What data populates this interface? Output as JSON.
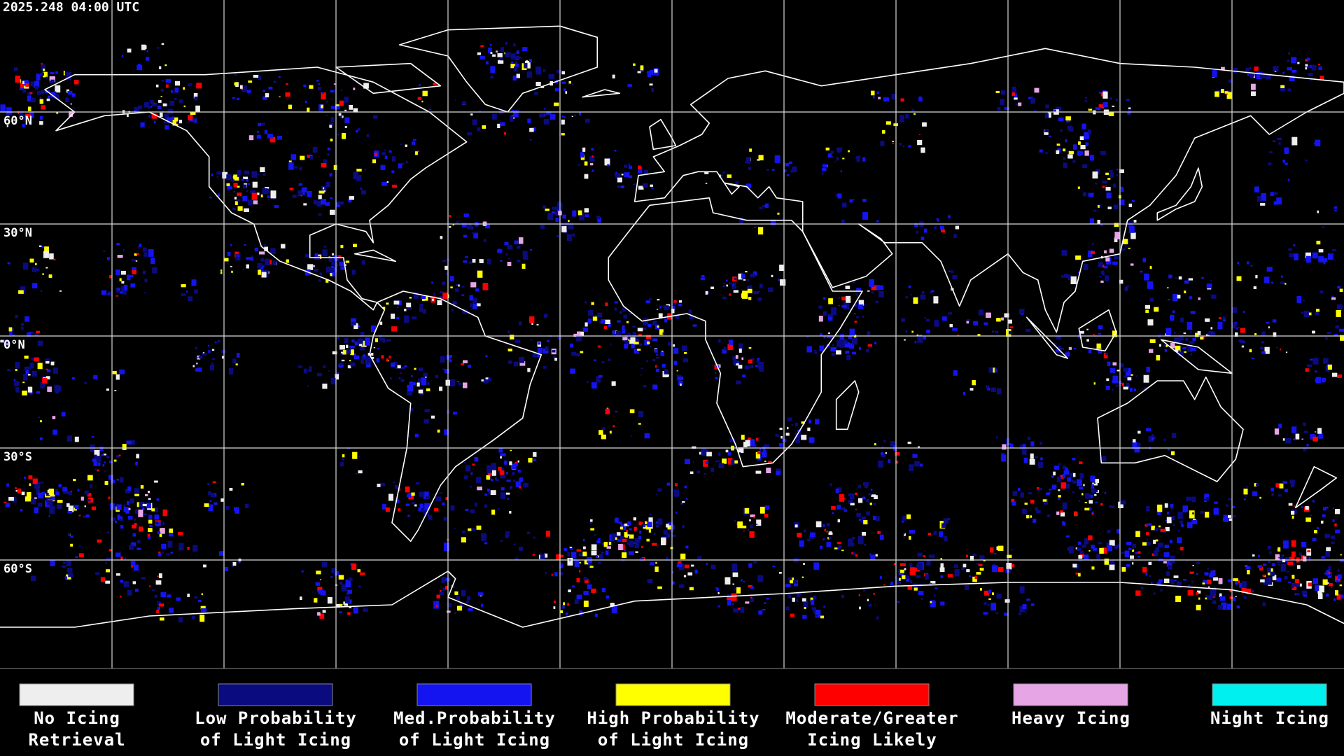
{
  "timestamp": "2025.248 04:00 UTC",
  "lat_labels": [
    "60°N",
    "30°N",
    "0°N",
    "30°S",
    "60°S"
  ],
  "legend": [
    {
      "lines": [
        "No Icing",
        "Retrieval"
      ],
      "color": "#eeeeee"
    },
    {
      "lines": [
        "Low Probability",
        "of Light Icing"
      ],
      "color": "#0b0b80"
    },
    {
      "lines": [
        "Med.Probability",
        "of Light Icing"
      ],
      "color": "#1414f0"
    },
    {
      "lines": [
        "High Probability",
        "of Light Icing"
      ],
      "color": "#ffff00"
    },
    {
      "lines": [
        "Moderate/Greater",
        "Icing Likely"
      ],
      "color": "#ff0000"
    },
    {
      "lines": [
        "Heavy Icing"
      ],
      "color": "#e6a6e6"
    },
    {
      "lines": [
        "Night Icing"
      ],
      "color": "#00f0f0"
    }
  ]
}
